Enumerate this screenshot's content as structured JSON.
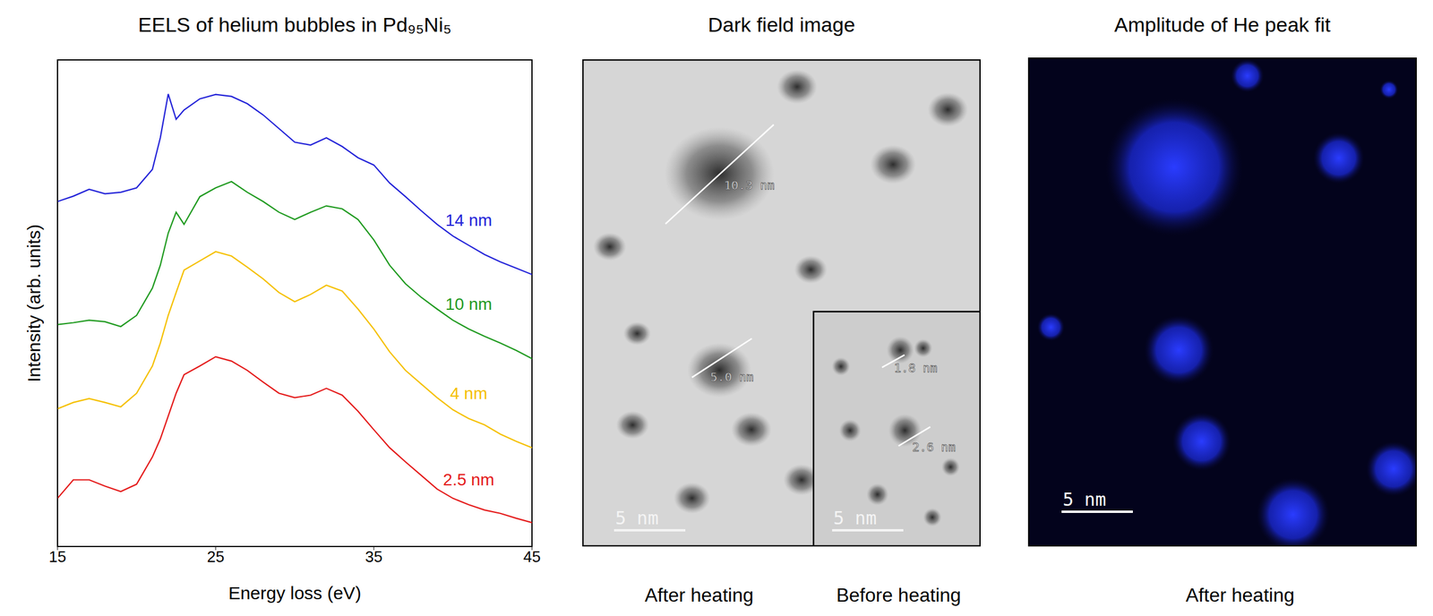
{
  "chart_data": [
    {
      "type": "line",
      "title": "EELS of helium bubbles in Pd₉₅Ni₅",
      "x_label": "Energy loss (eV)",
      "y_label": "Intensity (arb. units)",
      "x": [
        15,
        16,
        17,
        18,
        19,
        20,
        21,
        21.5,
        22,
        22.5,
        23,
        24,
        25,
        26,
        27,
        28,
        29,
        30,
        31,
        32,
        33,
        34,
        35,
        36,
        37,
        38,
        39,
        40,
        41,
        42,
        43,
        44,
        45
      ],
      "series": [
        {
          "name": "14 nm",
          "color": "#2222d8",
          "values": [
            70.9,
            72,
            73.4,
            72.5,
            72.8,
            73.7,
            77.5,
            84,
            93,
            87.8,
            89.7,
            92,
            92.9,
            92.5,
            91,
            88.7,
            85.9,
            83.1,
            82.5,
            84,
            82.2,
            79.9,
            78.4,
            74.7,
            71.9,
            69,
            66.2,
            63.8,
            61.9,
            60,
            58.5,
            57.2,
            55.9
          ]
        },
        {
          "name": "10 nm",
          "color": "#1f9a1f",
          "values": [
            45.6,
            46,
            46.5,
            46.2,
            45.2,
            47.5,
            53.1,
            57.8,
            64.4,
            68.7,
            66.2,
            71.9,
            73.7,
            75,
            72.8,
            70.9,
            68.7,
            67.2,
            68.7,
            70,
            69.4,
            67.2,
            63,
            57.8,
            54,
            51.2,
            48.8,
            46.5,
            44.7,
            43.2,
            41.8,
            40.3,
            38.6
          ]
        },
        {
          "name": "4 nm",
          "color": "#f5c000",
          "values": [
            28.3,
            29.6,
            30.4,
            29.6,
            28.7,
            31.5,
            37.1,
            41.8,
            47.5,
            52.2,
            56.8,
            58.7,
            60.6,
            59.7,
            57.4,
            55,
            52.2,
            50.3,
            51.8,
            53.7,
            52.5,
            48.8,
            44.7,
            40,
            36.2,
            33.4,
            30.6,
            28.1,
            26.3,
            25,
            23.1,
            21.6,
            20.3
          ]
        },
        {
          "name": "2.5 nm",
          "color": "#e41a1a",
          "values": [
            9.9,
            13.7,
            13.7,
            12.4,
            11.3,
            12.8,
            18.4,
            22.1,
            26.8,
            31.5,
            35.3,
            37.1,
            39,
            38.1,
            36.2,
            33.8,
            31.5,
            30.6,
            31.1,
            32.5,
            31.1,
            27.8,
            24,
            20.3,
            17.4,
            14.6,
            11.8,
            9.9,
            8.6,
            7.5,
            6.8,
            5.8,
            4.9
          ]
        }
      ],
      "xlim": [
        15,
        45
      ],
      "xticks": [
        15,
        25,
        35,
        45
      ],
      "ylim": [
        0,
        100
      ],
      "tick_labels": "x"
    },
    {
      "type": "image",
      "title": "Dark field image",
      "panels": [
        {
          "caption": "After heating",
          "scale_bar": {
            "value": 5,
            "label": "5 nm"
          },
          "measurements": [
            {
              "value": 10.3,
              "label": "10.3 nm"
            },
            {
              "value": 5.0,
              "label": "5.0 nm"
            }
          ]
        },
        {
          "caption": "Before heating",
          "scale_bar": {
            "value": 5,
            "label": "5 nm"
          },
          "measurements": [
            {
              "value": 1.8,
              "label": "1.8 nm"
            },
            {
              "value": 2.6,
              "label": "2.6 nm"
            }
          ]
        }
      ]
    },
    {
      "type": "image",
      "title": "Amplitude of He peak fit",
      "panels": [
        {
          "caption": "After heating",
          "scale_bar": {
            "value": 5,
            "label": "5 nm"
          }
        }
      ]
    }
  ]
}
